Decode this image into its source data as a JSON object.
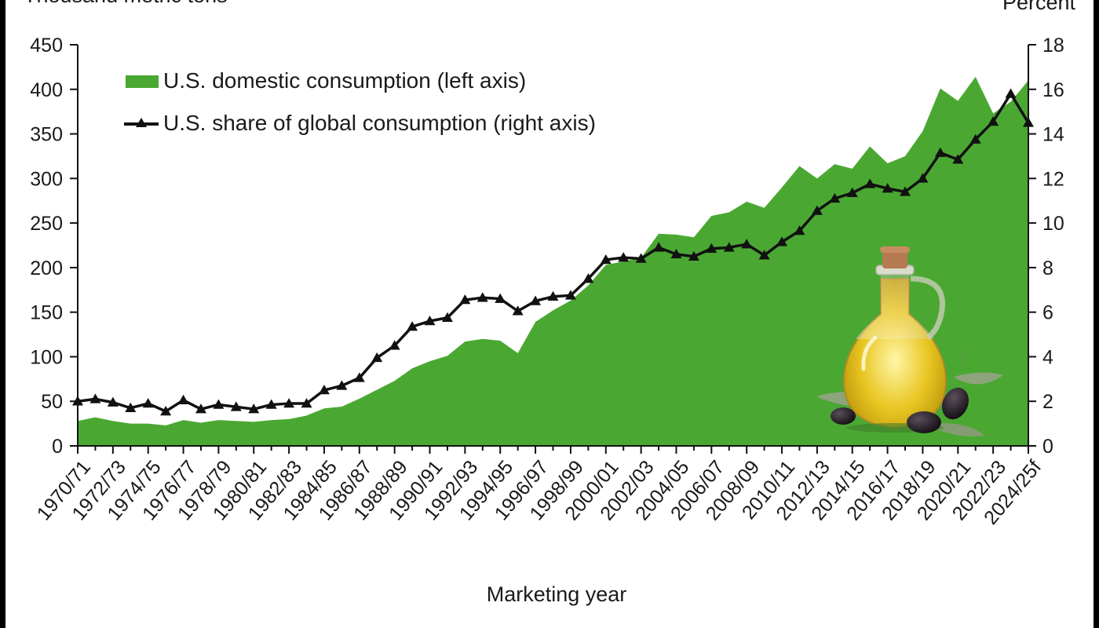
{
  "chart_data": {
    "type": "area",
    "left_axis_title": "Thousand metric tons",
    "right_axis_title": "Percent",
    "xlabel": "Marketing year",
    "left_ylim": [
      0,
      450
    ],
    "right_ylim": [
      0,
      18
    ],
    "left_ticks": [
      0,
      50,
      100,
      150,
      200,
      250,
      300,
      350,
      400,
      450
    ],
    "right_ticks": [
      0,
      2,
      4,
      6,
      8,
      10,
      12,
      14,
      16,
      18
    ],
    "legend_placement": "top-left",
    "grid": false,
    "categories": [
      "1970/71",
      "1971/72",
      "1972/73",
      "1973/74",
      "1974/75",
      "1975/76",
      "1976/77",
      "1977/78",
      "1978/79",
      "1979/80",
      "1980/81",
      "1981/82",
      "1982/83",
      "1983/84",
      "1984/85",
      "1985/86",
      "1986/87",
      "1987/88",
      "1988/89",
      "1989/90",
      "1990/91",
      "1991/92",
      "1992/93",
      "1993/94",
      "1994/95",
      "1995/96",
      "1996/97",
      "1997/98",
      "1998/99",
      "1999/00",
      "2000/01",
      "2001/02",
      "2002/03",
      "2003/04",
      "2004/05",
      "2005/06",
      "2006/07",
      "2007/08",
      "2008/09",
      "2009/10",
      "2010/11",
      "2011/12",
      "2012/13",
      "2013/14",
      "2014/15",
      "2015/16",
      "2016/17",
      "2017/18",
      "2018/19",
      "2019/20",
      "2020/21",
      "2021/22",
      "2022/23",
      "2023/24",
      "2024/25f"
    ],
    "tick_labels": [
      "1970/71",
      "1972/73",
      "1974/75",
      "1976/77",
      "1978/79",
      "1980/81",
      "1982/83",
      "1984/85",
      "1986/87",
      "1988/89",
      "1990/91",
      "1992/93",
      "1994/95",
      "1996/97",
      "1998/99",
      "2000/01",
      "2002/03",
      "2004/05",
      "2006/07",
      "2008/09",
      "2010/11",
      "2012/13",
      "2014/15",
      "2016/17",
      "2018/19",
      "2020/21",
      "2022/23",
      "2024/25f"
    ],
    "series": [
      {
        "name": "U.S. domestic consumption (left axis)",
        "axis": "left",
        "kind": "area",
        "color": "#4aa832",
        "values": [
          28,
          32,
          28,
          25,
          25,
          23,
          29,
          26,
          29,
          28,
          27,
          29,
          30,
          34,
          42,
          44,
          53,
          63,
          73,
          87,
          95,
          101,
          117,
          120,
          118,
          104,
          139,
          152,
          163,
          180,
          203,
          207,
          211,
          238,
          237,
          234,
          258,
          262,
          274,
          267,
          290,
          314,
          300,
          316,
          311,
          336,
          317,
          325,
          353,
          401,
          387,
          414,
          373,
          386,
          410
        ]
      },
      {
        "name": "U.S. share of global consumption (right axis)",
        "axis": "right",
        "kind": "line",
        "marker": "triangle",
        "color": "#111111",
        "values": [
          2.0,
          2.1,
          1.95,
          1.7,
          1.9,
          1.55,
          2.05,
          1.65,
          1.85,
          1.75,
          1.65,
          1.85,
          1.9,
          1.9,
          2.5,
          2.7,
          3.05,
          3.95,
          4.5,
          5.35,
          5.6,
          5.75,
          6.55,
          6.65,
          6.6,
          6.05,
          6.5,
          6.7,
          6.75,
          7.5,
          8.35,
          8.45,
          8.4,
          8.9,
          8.6,
          8.5,
          8.85,
          8.9,
          9.05,
          8.55,
          9.15,
          9.65,
          10.55,
          11.1,
          11.35,
          11.75,
          11.55,
          11.4,
          12.0,
          13.15,
          12.85,
          13.75,
          14.55,
          15.8,
          14.5
        ]
      }
    ]
  }
}
